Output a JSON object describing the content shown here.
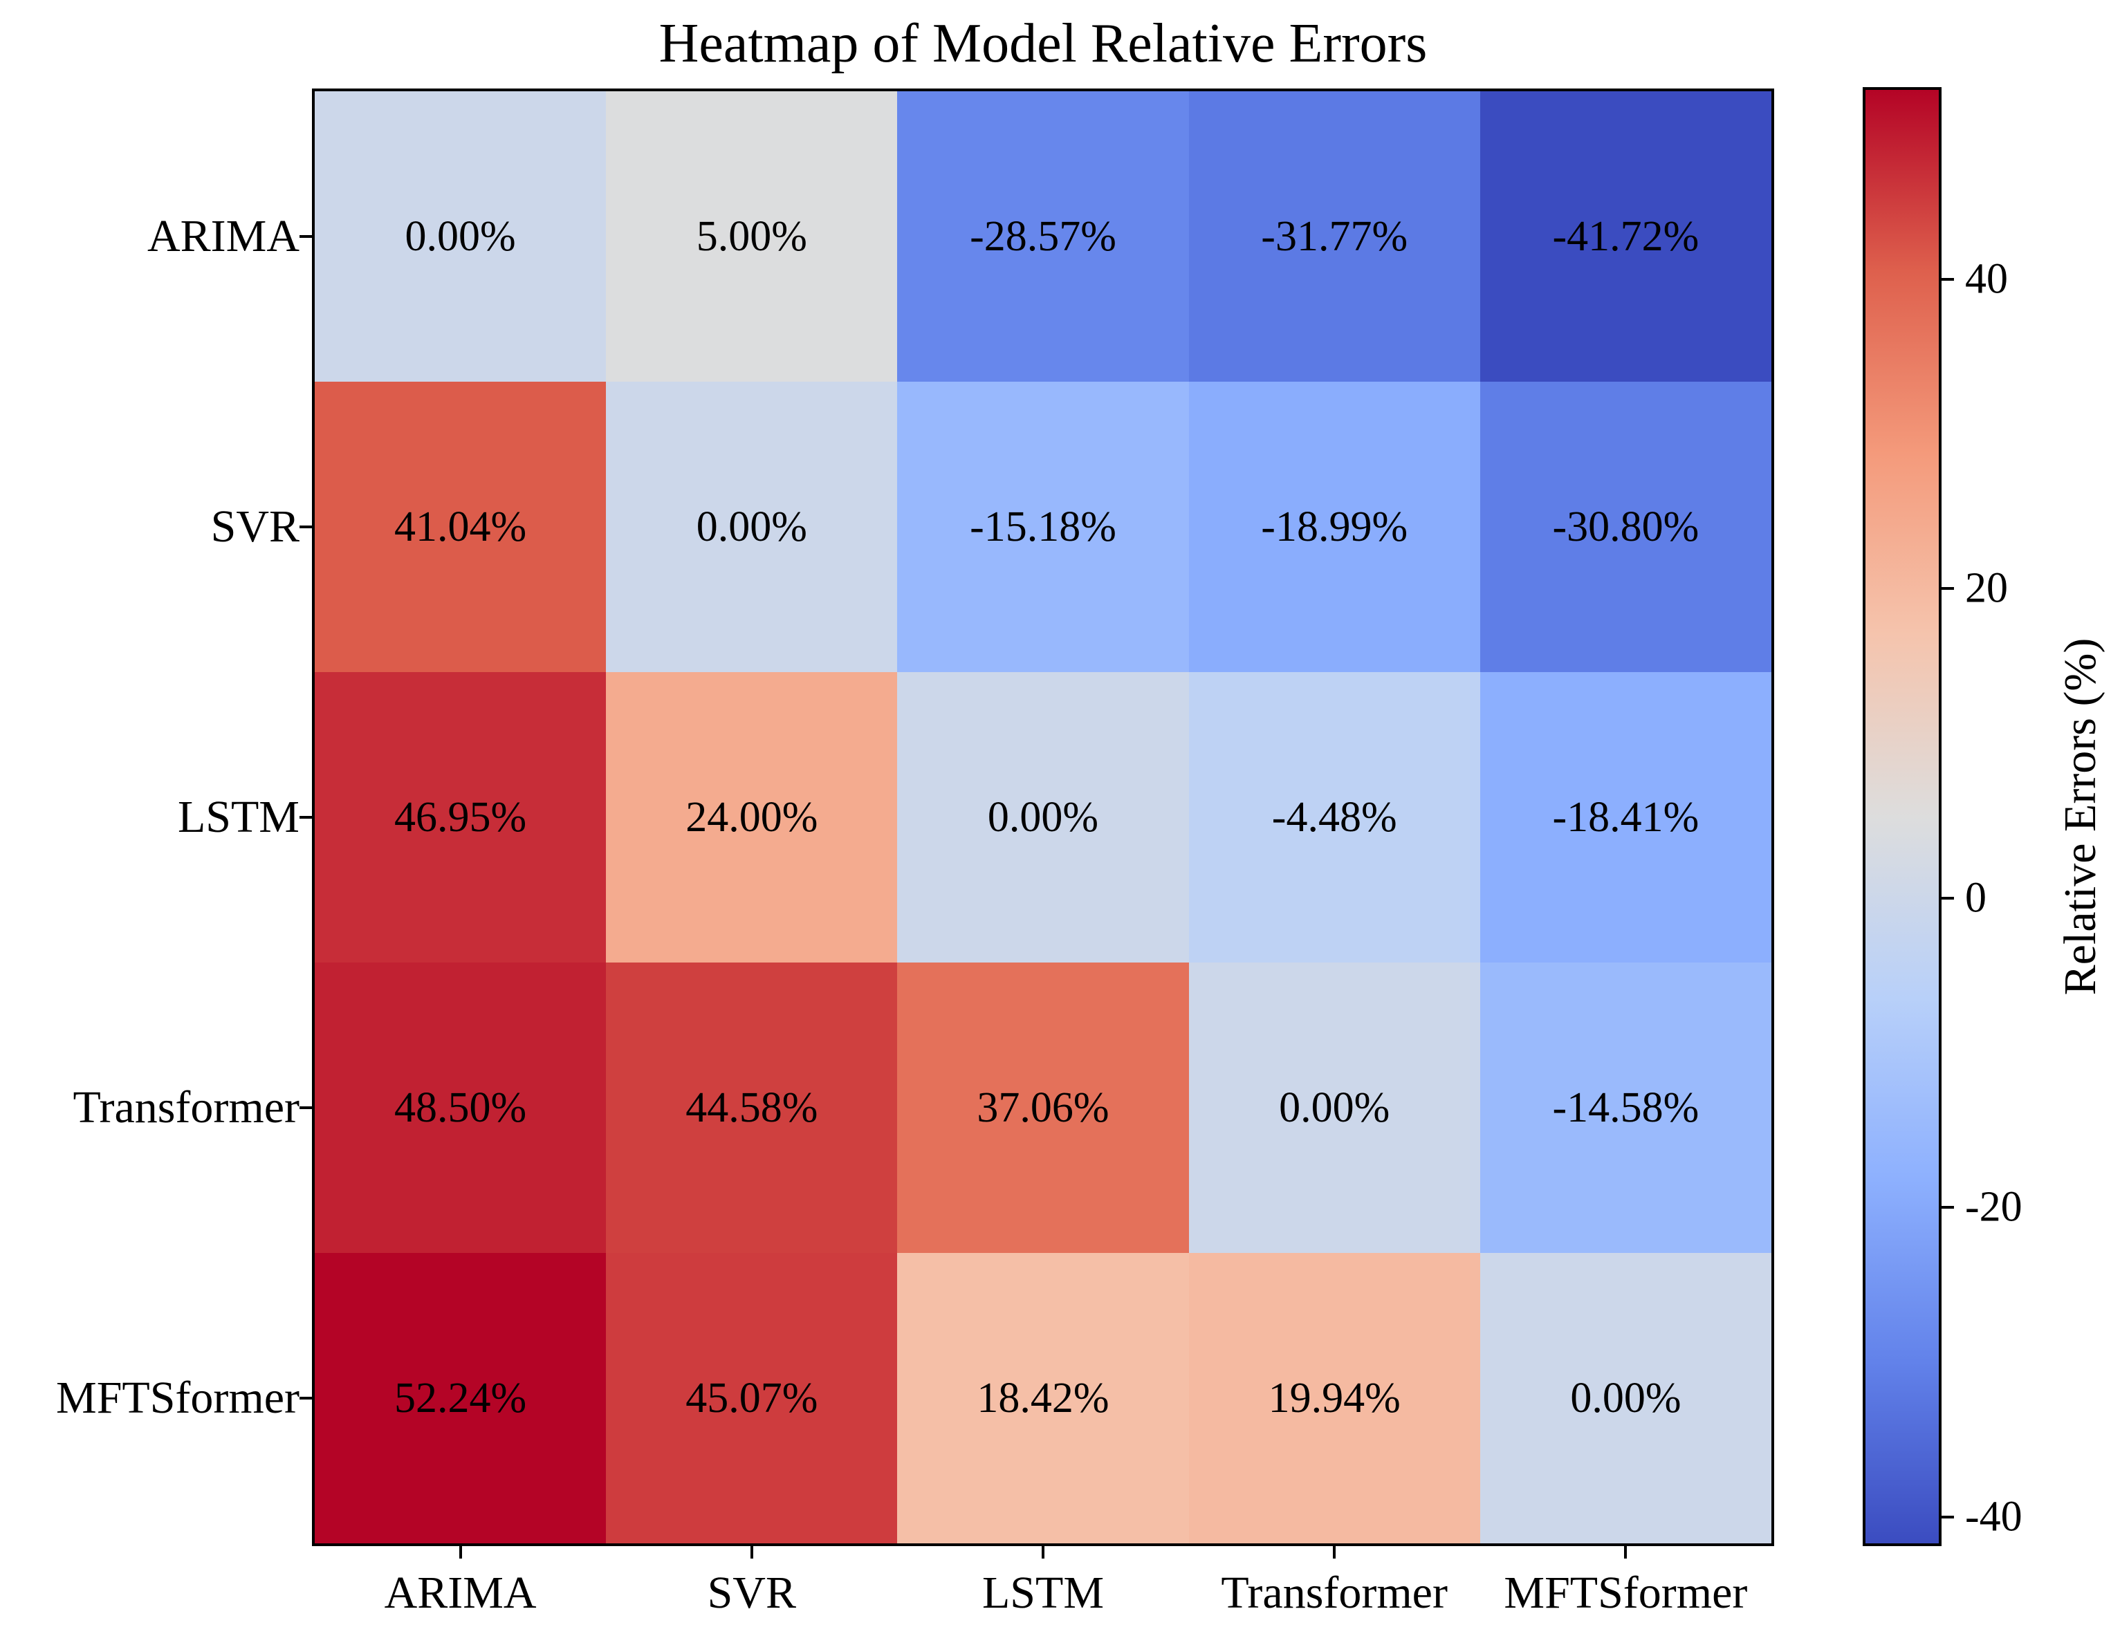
{
  "chart_data": {
    "type": "heatmap",
    "title": "Heatmap of Model Relative Errors",
    "x_categories": [
      "ARIMA",
      "SVR",
      "LSTM",
      "Transformer",
      "MFTSformer"
    ],
    "y_categories": [
      "ARIMA",
      "SVR",
      "LSTM",
      "Transformer",
      "MFTSformer"
    ],
    "values": [
      [
        0.0,
        5.0,
        -28.57,
        -31.77,
        -41.72
      ],
      [
        41.04,
        0.0,
        -15.18,
        -18.99,
        -30.8
      ],
      [
        46.95,
        24.0,
        0.0,
        -4.48,
        -18.41
      ],
      [
        48.5,
        44.58,
        37.06,
        0.0,
        -14.58
      ],
      [
        52.24,
        45.07,
        18.42,
        19.94,
        0.0
      ]
    ],
    "cell_labels": [
      [
        "0.00%",
        "5.00%",
        "-28.57%",
        "-31.77%",
        "-41.72%"
      ],
      [
        "41.04%",
        "0.00%",
        "-15.18%",
        "-18.99%",
        "-30.80%"
      ],
      [
        "46.95%",
        "24.00%",
        "0.00%",
        "-4.48%",
        "-18.41%"
      ],
      [
        "48.50%",
        "44.58%",
        "37.06%",
        "0.00%",
        "-14.58%"
      ],
      [
        "52.24%",
        "45.07%",
        "18.42%",
        "19.94%",
        "0.00%"
      ]
    ],
    "cell_colors": [
      [
        "#CCD7EA",
        "#DCDDDE",
        "#6787EC",
        "#5C7AE4",
        "#3B4CC0"
      ],
      [
        "#DC5C4B",
        "#CCD7EA",
        "#98B8FD",
        "#8AADFD",
        "#5F7EE7"
      ],
      [
        "#C72D38",
        "#F4AB8F",
        "#CCD7EA",
        "#BED2F4",
        "#8CAFFE"
      ],
      [
        "#C12132",
        "#CF403F",
        "#E4715A",
        "#CCD7EA",
        "#9ABAFC"
      ],
      [
        "#B40426",
        "#CE3C3E",
        "#F5BFA7",
        "#F5BAA1",
        "#CCD7EA"
      ]
    ],
    "colorbar": {
      "label": "Relative Errors (%)",
      "tick_labels": [
        "40",
        "20",
        "0",
        "-20",
        "-40"
      ],
      "tick_values": [
        40,
        20,
        0,
        -20,
        -40
      ],
      "vmin": -41.72,
      "vmax": 52.24,
      "colormap": "coolwarm",
      "gradient_stops_top_to_bottom": [
        "#B40426",
        "#DE604D",
        "#F49A7B",
        "#F5C4AD",
        "#DDDDDD",
        "#B8D0F9",
        "#8DB0FE",
        "#6282EA",
        "#3B4CC0"
      ]
    },
    "text_color": "#000000",
    "background_color": "#FFFFFF",
    "grid": false,
    "legend": "colorbar-right"
  }
}
